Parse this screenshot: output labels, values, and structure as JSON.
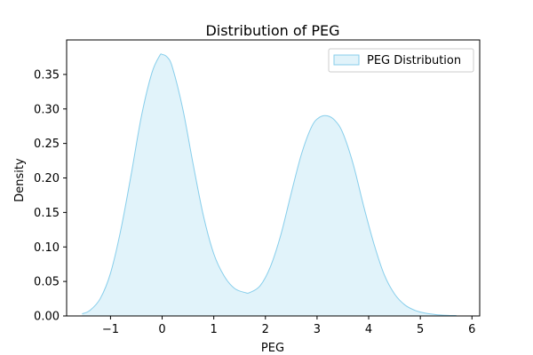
{
  "chart_data": {
    "type": "area",
    "title": "Distribution of PEG",
    "xlabel": "PEG",
    "ylabel": "Density",
    "xlim": [
      -1.85,
      6.15
    ],
    "ylim": [
      0,
      0.4
    ],
    "xticks": [
      -1,
      0,
      1,
      2,
      3,
      4,
      5,
      6
    ],
    "xtick_labels": [
      "−1",
      "0",
      "1",
      "2",
      "3",
      "4",
      "5",
      "6"
    ],
    "yticks": [
      0.0,
      0.05,
      0.1,
      0.15,
      0.2,
      0.25,
      0.3,
      0.35
    ],
    "ytick_labels": [
      "0.00",
      "0.05",
      "0.10",
      "0.15",
      "0.20",
      "0.25",
      "0.30",
      "0.35"
    ],
    "grid": false,
    "legend_position": "top-right",
    "series": [
      {
        "name": "PEG Distribution",
        "fill_color": "#87ceeb",
        "line_color": "#87ceeb",
        "x": [
          -1.55,
          -1.4,
          -1.2,
          -1.0,
          -0.8,
          -0.6,
          -0.4,
          -0.2,
          -0.05,
          0.0,
          0.1,
          0.2,
          0.4,
          0.6,
          0.8,
          1.0,
          1.2,
          1.4,
          1.6,
          1.7,
          1.9,
          2.1,
          2.3,
          2.5,
          2.7,
          2.9,
          3.05,
          3.2,
          3.35,
          3.5,
          3.7,
          3.9,
          4.1,
          4.3,
          4.5,
          4.7,
          4.9,
          5.1,
          5.3,
          5.5,
          5.7
        ],
        "y": [
          0.003,
          0.008,
          0.025,
          0.062,
          0.125,
          0.205,
          0.29,
          0.352,
          0.377,
          0.379,
          0.375,
          0.36,
          0.3,
          0.22,
          0.145,
          0.09,
          0.058,
          0.04,
          0.034,
          0.034,
          0.044,
          0.072,
          0.118,
          0.178,
          0.235,
          0.275,
          0.288,
          0.29,
          0.283,
          0.265,
          0.22,
          0.16,
          0.105,
          0.06,
          0.032,
          0.016,
          0.008,
          0.004,
          0.002,
          0.001,
          0.0005
        ]
      }
    ]
  }
}
